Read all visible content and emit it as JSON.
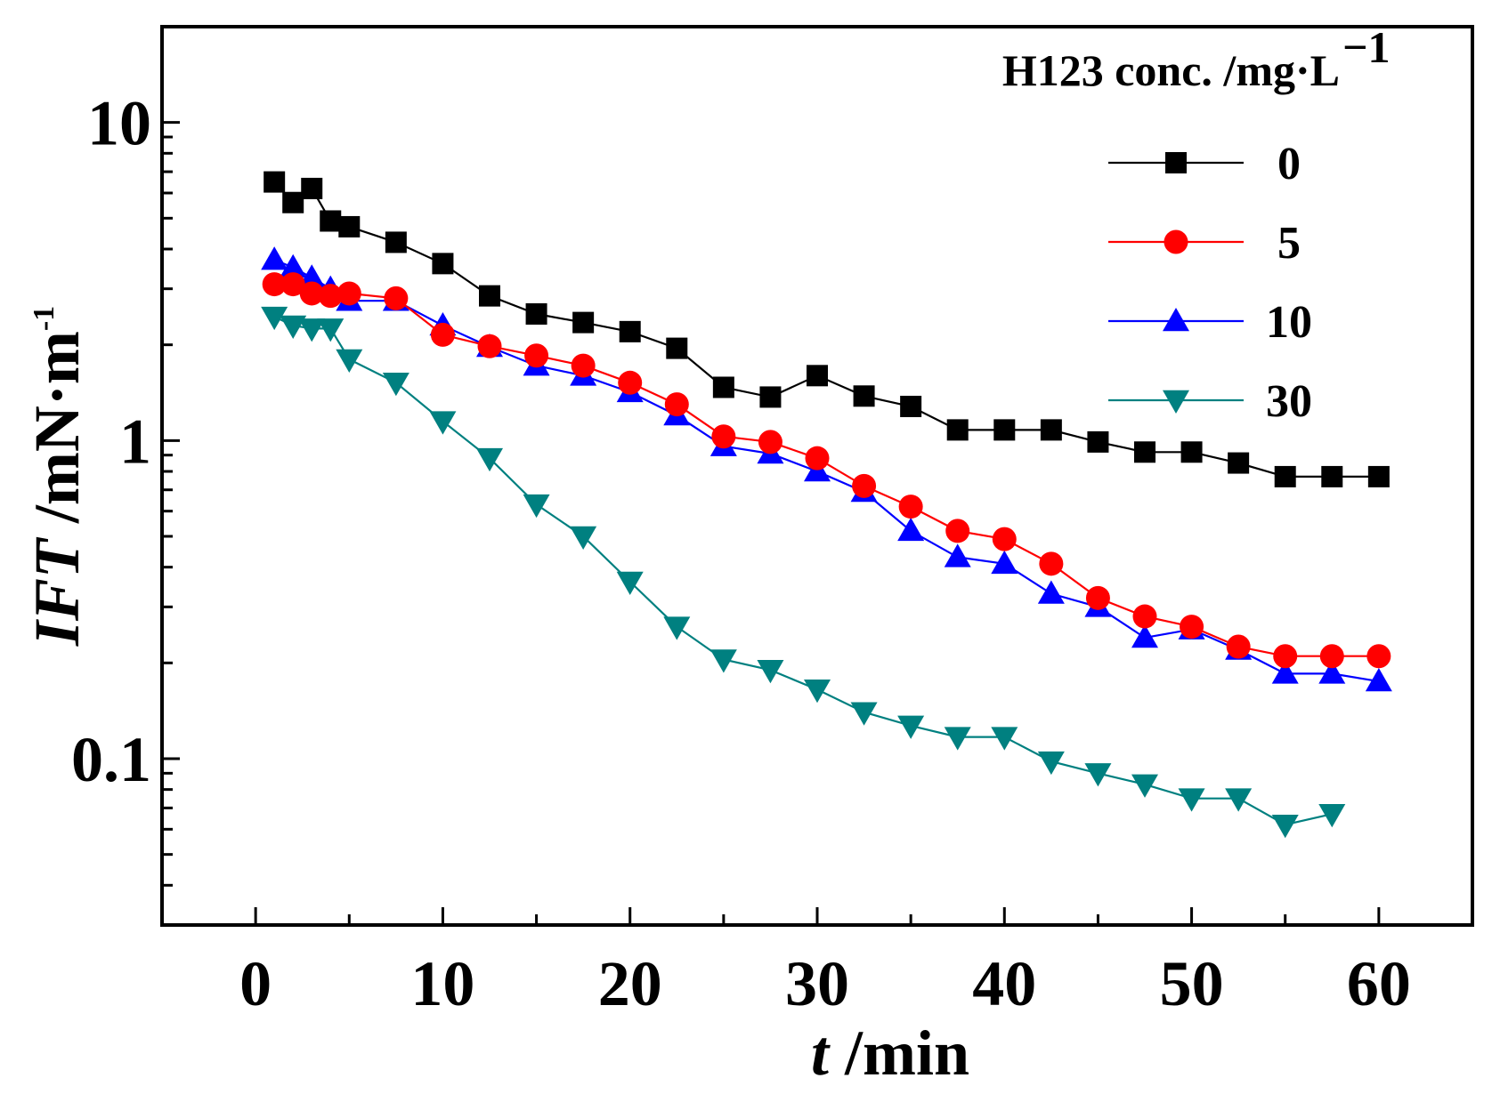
{
  "chart_data": {
    "type": "line",
    "xlabel": {
      "italic": "t",
      "rest": " /min"
    },
    "ylabel": {
      "italic": "IFT",
      "rest": " /mN·m",
      "sup": "-1"
    },
    "xlim": [
      -5,
      65
    ],
    "ylim": [
      0.03,
      20
    ],
    "yscale": "log",
    "xticks": [
      0,
      10,
      20,
      30,
      40,
      50,
      60
    ],
    "xtick_labels": [
      "0",
      "10",
      "20",
      "30",
      "40",
      "50",
      "60"
    ],
    "yticks": [
      0.1,
      1,
      10
    ],
    "ytick_labels": [
      "0.1",
      "1",
      "10"
    ],
    "legend": {
      "title": "H123 conc. /mg·L",
      "title_sup": "−1",
      "position": "top-right"
    },
    "series": [
      {
        "name": "0",
        "color": "#000000",
        "marker": "square",
        "x": [
          1,
          2,
          3,
          4,
          5,
          7.5,
          10,
          12.5,
          15,
          17.5,
          20,
          22.5,
          25,
          27.5,
          30,
          32.5,
          35,
          37.5,
          40,
          42.5,
          45,
          47.5,
          50,
          52.5,
          55,
          57.5,
          60
        ],
        "y": [
          6.5,
          5.6,
          6.2,
          4.9,
          4.7,
          4.2,
          3.6,
          2.85,
          2.5,
          2.35,
          2.2,
          1.95,
          1.47,
          1.37,
          1.6,
          1.38,
          1.28,
          1.08,
          1.08,
          1.08,
          0.99,
          0.92,
          0.92,
          0.85,
          0.77,
          0.77,
          0.77
        ]
      },
      {
        "name": "5",
        "color": "#ff0000",
        "marker": "circle",
        "x": [
          1,
          2,
          3,
          4,
          5,
          7.5,
          10,
          12.5,
          15,
          17.5,
          20,
          22.5,
          25,
          27.5,
          30,
          32.5,
          35,
          37.5,
          40,
          42.5,
          45,
          47.5,
          50,
          52.5,
          55,
          57.5,
          60
        ],
        "y": [
          3.1,
          3.1,
          2.9,
          2.85,
          2.9,
          2.8,
          2.15,
          1.98,
          1.85,
          1.72,
          1.52,
          1.3,
          1.03,
          0.99,
          0.88,
          0.72,
          0.62,
          0.52,
          0.49,
          0.41,
          0.32,
          0.28,
          0.26,
          0.225,
          0.21,
          0.21,
          0.21
        ]
      },
      {
        "name": "10",
        "color": "#0000ff",
        "marker": "triangle-up",
        "x": [
          1,
          2,
          3,
          4,
          5,
          7.5,
          10,
          12.5,
          15,
          17.5,
          20,
          22.5,
          25,
          27.5,
          30,
          32.5,
          35,
          37.5,
          40,
          42.5,
          45,
          47.5,
          50,
          52.5,
          55,
          57.5,
          60
        ],
        "y": [
          3.7,
          3.5,
          3.25,
          3.0,
          2.75,
          2.75,
          2.3,
          1.97,
          1.72,
          1.6,
          1.42,
          1.2,
          0.96,
          0.91,
          0.8,
          0.69,
          0.52,
          0.43,
          0.41,
          0.33,
          0.3,
          0.24,
          0.255,
          0.22,
          0.185,
          0.185,
          0.175
        ]
      },
      {
        "name": "30",
        "color": "#008080",
        "marker": "triangle-down",
        "x": [
          1,
          2,
          3,
          4,
          5,
          7.5,
          10,
          12.5,
          15,
          17.5,
          20,
          22.5,
          25,
          27.5,
          30,
          32.5,
          35,
          37.5,
          40,
          42.5,
          45,
          47.5,
          50,
          52.5,
          55,
          57.5
        ],
        "y": [
          2.45,
          2.3,
          2.25,
          2.25,
          1.8,
          1.52,
          1.15,
          0.88,
          0.63,
          0.5,
          0.36,
          0.26,
          0.205,
          0.19,
          0.165,
          0.14,
          0.127,
          0.117,
          0.117,
          0.098,
          0.09,
          0.083,
          0.075,
          0.075,
          0.062,
          0.067
        ]
      }
    ]
  }
}
